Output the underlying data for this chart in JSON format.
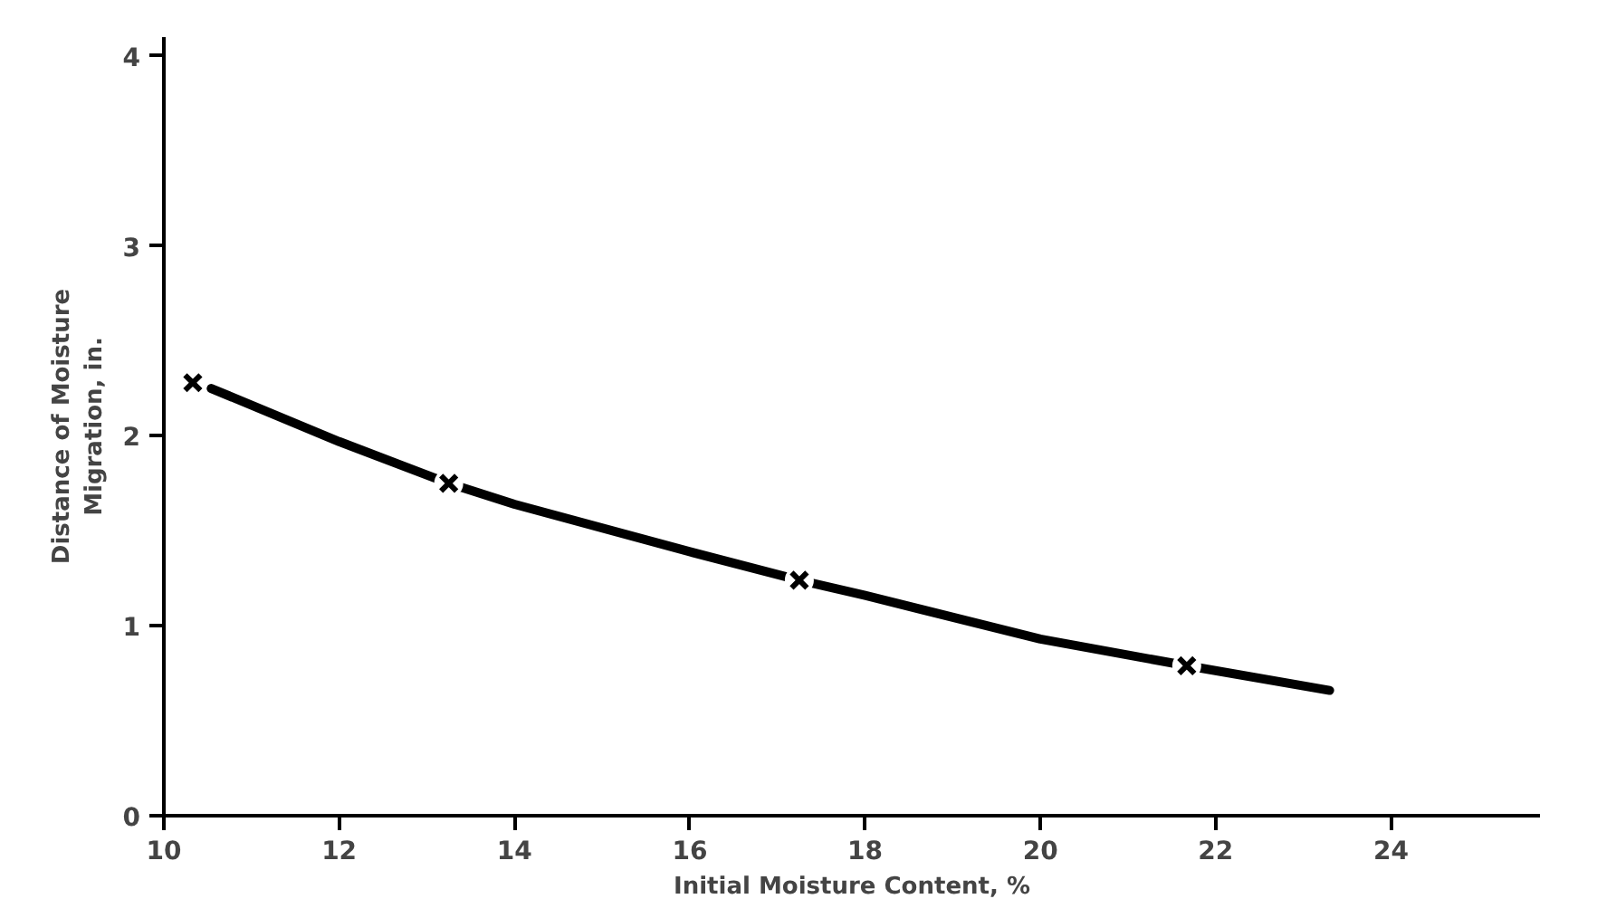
{
  "chart_data": {
    "type": "scatter",
    "xlabel": "Initial Moisture Content, %",
    "ylabel": "Distance of Moisture\nMigration, in.",
    "xlim": [
      10,
      25.7
    ],
    "ylim": [
      0,
      4.1
    ],
    "xticks": [
      10,
      12,
      14,
      16,
      18,
      20,
      22,
      24
    ],
    "yticks": [
      0,
      1,
      2,
      3,
      4
    ],
    "grid": false,
    "marker": "cross",
    "series": [
      {
        "color": "#000000",
        "x": [
          10.33,
          13.25,
          17.25,
          21.67
        ],
        "values": [
          2.28,
          1.75,
          1.24,
          0.79
        ]
      },
      {
        "type": "line",
        "color": "#000000",
        "marker": "none",
        "line_style": "solid",
        "x": [
          10.54,
          12,
          13.25,
          14,
          16,
          17.25,
          18,
          20,
          21.67,
          23.3
        ],
        "values": [
          2.25,
          1.97,
          1.75,
          1.64,
          1.39,
          1.24,
          1.16,
          0.93,
          0.79,
          0.66
        ]
      }
    ]
  }
}
